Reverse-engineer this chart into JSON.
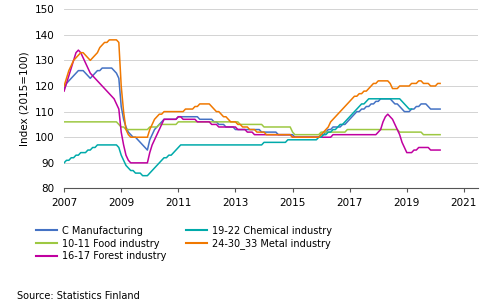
{
  "ylabel": "Index (2015=100)",
  "source": "Source: Statistics Finland",
  "xlim": [
    2007.0,
    2021.5
  ],
  "ylim": [
    80,
    150
  ],
  "yticks": [
    80,
    90,
    100,
    110,
    120,
    130,
    140,
    150
  ],
  "xticks": [
    2007,
    2009,
    2011,
    2013,
    2015,
    2017,
    2019,
    2021
  ],
  "series": {
    "C Manufacturing": {
      "color": "#4472c4",
      "data": [
        119,
        121,
        122,
        123,
        124,
        125,
        126,
        126,
        126,
        125,
        124,
        123,
        124,
        125,
        126,
        126,
        127,
        127,
        127,
        127,
        127,
        126,
        125,
        123,
        112,
        107,
        104,
        102,
        101,
        100,
        100,
        99,
        98,
        97,
        96,
        95,
        99,
        101,
        103,
        104,
        105,
        106,
        107,
        107,
        107,
        107,
        107,
        107,
        108,
        108,
        108,
        108,
        108,
        108,
        108,
        108,
        108,
        107,
        107,
        107,
        107,
        107,
        107,
        106,
        106,
        105,
        105,
        105,
        104,
        104,
        104,
        104,
        103,
        103,
        103,
        103,
        103,
        103,
        103,
        103,
        103,
        103,
        103,
        102,
        102,
        102,
        102,
        102,
        102,
        102,
        101,
        101,
        101,
        101,
        101,
        101,
        101,
        100,
        100,
        100,
        100,
        100,
        100,
        100,
        100,
        100,
        100,
        100,
        101,
        101,
        102,
        103,
        103,
        104,
        104,
        104,
        104,
        105,
        105,
        106,
        107,
        108,
        109,
        110,
        110,
        111,
        111,
        112,
        112,
        113,
        113,
        114,
        114,
        115,
        115,
        115,
        115,
        115,
        114,
        113,
        113,
        112,
        111,
        110,
        110,
        110,
        111,
        111,
        112,
        112,
        113,
        113,
        113,
        112,
        111,
        111,
        111,
        111,
        111
      ]
    },
    "10-11 Food industry": {
      "color": "#9dc842",
      "data": [
        106,
        106,
        106,
        106,
        106,
        106,
        106,
        106,
        106,
        106,
        106,
        106,
        106,
        106,
        106,
        106,
        106,
        106,
        106,
        106,
        106,
        106,
        106,
        105,
        104,
        104,
        103,
        103,
        103,
        103,
        103,
        103,
        103,
        103,
        103,
        103,
        104,
        104,
        104,
        104,
        105,
        105,
        105,
        105,
        105,
        105,
        105,
        105,
        106,
        106,
        106,
        106,
        106,
        106,
        106,
        106,
        106,
        106,
        106,
        106,
        106,
        106,
        106,
        106,
        106,
        106,
        106,
        106,
        106,
        106,
        106,
        106,
        106,
        106,
        105,
        105,
        105,
        105,
        105,
        105,
        105,
        105,
        105,
        105,
        104,
        104,
        104,
        104,
        104,
        104,
        104,
        104,
        104,
        104,
        104,
        104,
        102,
        101,
        101,
        101,
        101,
        101,
        101,
        101,
        101,
        101,
        101,
        101,
        102,
        102,
        102,
        102,
        102,
        102,
        102,
        102,
        102,
        102,
        102,
        103,
        103,
        103,
        103,
        103,
        103,
        103,
        103,
        103,
        103,
        103,
        103,
        103,
        103,
        103,
        103,
        103,
        103,
        103,
        103,
        103,
        103,
        102,
        102,
        102,
        102,
        102,
        102,
        102,
        102,
        102,
        102,
        101,
        101,
        101,
        101,
        101,
        101,
        101,
        101
      ]
    },
    "16-17 Forest industry": {
      "color": "#c000a0",
      "data": [
        118,
        121,
        124,
        127,
        130,
        133,
        134,
        133,
        131,
        129,
        127,
        125,
        124,
        123,
        122,
        121,
        120,
        119,
        118,
        117,
        116,
        115,
        113,
        111,
        102,
        97,
        93,
        91,
        90,
        90,
        90,
        90,
        90,
        90,
        90,
        90,
        94,
        97,
        99,
        101,
        103,
        105,
        107,
        107,
        107,
        107,
        107,
        107,
        108,
        108,
        107,
        107,
        107,
        107,
        107,
        107,
        106,
        106,
        106,
        106,
        106,
        106,
        105,
        105,
        105,
        104,
        104,
        104,
        104,
        104,
        104,
        104,
        104,
        103,
        103,
        103,
        103,
        102,
        102,
        102,
        101,
        101,
        101,
        101,
        101,
        101,
        101,
        101,
        101,
        101,
        101,
        101,
        101,
        101,
        101,
        101,
        100,
        100,
        100,
        100,
        100,
        100,
        100,
        100,
        100,
        100,
        100,
        100,
        100,
        100,
        100,
        100,
        100,
        101,
        101,
        101,
        101,
        101,
        101,
        101,
        101,
        101,
        101,
        101,
        101,
        101,
        101,
        101,
        101,
        101,
        101,
        101,
        102,
        103,
        106,
        108,
        109,
        108,
        107,
        105,
        103,
        101,
        98,
        96,
        94,
        94,
        94,
        95,
        95,
        96,
        96,
        96,
        96,
        96,
        95,
        95,
        95,
        95,
        95
      ]
    },
    "19-22 Chemical industry": {
      "color": "#00aaaa",
      "data": [
        90,
        91,
        91,
        92,
        92,
        93,
        93,
        94,
        94,
        94,
        95,
        95,
        96,
        96,
        97,
        97,
        97,
        97,
        97,
        97,
        97,
        97,
        97,
        96,
        93,
        91,
        89,
        88,
        87,
        87,
        86,
        86,
        86,
        85,
        85,
        85,
        86,
        87,
        88,
        89,
        90,
        91,
        92,
        92,
        93,
        93,
        94,
        95,
        96,
        97,
        97,
        97,
        97,
        97,
        97,
        97,
        97,
        97,
        97,
        97,
        97,
        97,
        97,
        97,
        97,
        97,
        97,
        97,
        97,
        97,
        97,
        97,
        97,
        97,
        97,
        97,
        97,
        97,
        97,
        97,
        97,
        97,
        97,
        97,
        98,
        98,
        98,
        98,
        98,
        98,
        98,
        98,
        98,
        98,
        99,
        99,
        99,
        99,
        99,
        99,
        99,
        99,
        99,
        99,
        99,
        99,
        99,
        100,
        100,
        101,
        101,
        102,
        102,
        103,
        103,
        104,
        105,
        105,
        106,
        107,
        108,
        109,
        110,
        111,
        112,
        113,
        113,
        114,
        115,
        115,
        115,
        115,
        115,
        115,
        115,
        115,
        115,
        115,
        115,
        115,
        115,
        115,
        114,
        113,
        112,
        111,
        111
      ]
    },
    "24-30_33 Metal industry": {
      "color": "#f07800",
      "data": [
        120,
        123,
        126,
        128,
        130,
        131,
        132,
        133,
        133,
        132,
        131,
        130,
        131,
        132,
        133,
        135,
        136,
        137,
        137,
        138,
        138,
        138,
        138,
        137,
        120,
        110,
        103,
        101,
        100,
        100,
        100,
        100,
        100,
        100,
        100,
        100,
        103,
        105,
        107,
        108,
        109,
        109,
        110,
        110,
        110,
        110,
        110,
        110,
        110,
        110,
        110,
        111,
        111,
        111,
        111,
        112,
        112,
        113,
        113,
        113,
        113,
        113,
        112,
        111,
        110,
        110,
        109,
        108,
        108,
        107,
        106,
        106,
        106,
        105,
        105,
        104,
        104,
        104,
        103,
        103,
        103,
        102,
        102,
        102,
        102,
        101,
        101,
        101,
        101,
        101,
        101,
        101,
        101,
        101,
        101,
        101,
        100,
        100,
        100,
        100,
        100,
        100,
        100,
        100,
        100,
        100,
        100,
        100,
        101,
        102,
        103,
        104,
        106,
        107,
        108,
        109,
        110,
        111,
        112,
        113,
        114,
        115,
        116,
        116,
        117,
        117,
        118,
        118,
        119,
        120,
        121,
        121,
        122,
        122,
        122,
        122,
        122,
        121,
        119,
        119,
        119,
        120,
        120,
        120,
        120,
        120,
        121,
        121,
        121,
        122,
        122,
        121,
        121,
        121,
        120,
        120,
        120,
        121,
        121
      ]
    }
  },
  "legend_order": [
    {
      "label": "C Manufacturing",
      "color": "#4472c4"
    },
    {
      "label": "10-11 Food industry",
      "color": "#9dc842"
    },
    {
      "label": "16-17 Forest industry",
      "color": "#c000a0"
    },
    {
      "label": "19-22 Chemical industry",
      "color": "#00aaaa"
    },
    {
      "label": "24-30_33 Metal industry",
      "color": "#f07800"
    }
  ]
}
